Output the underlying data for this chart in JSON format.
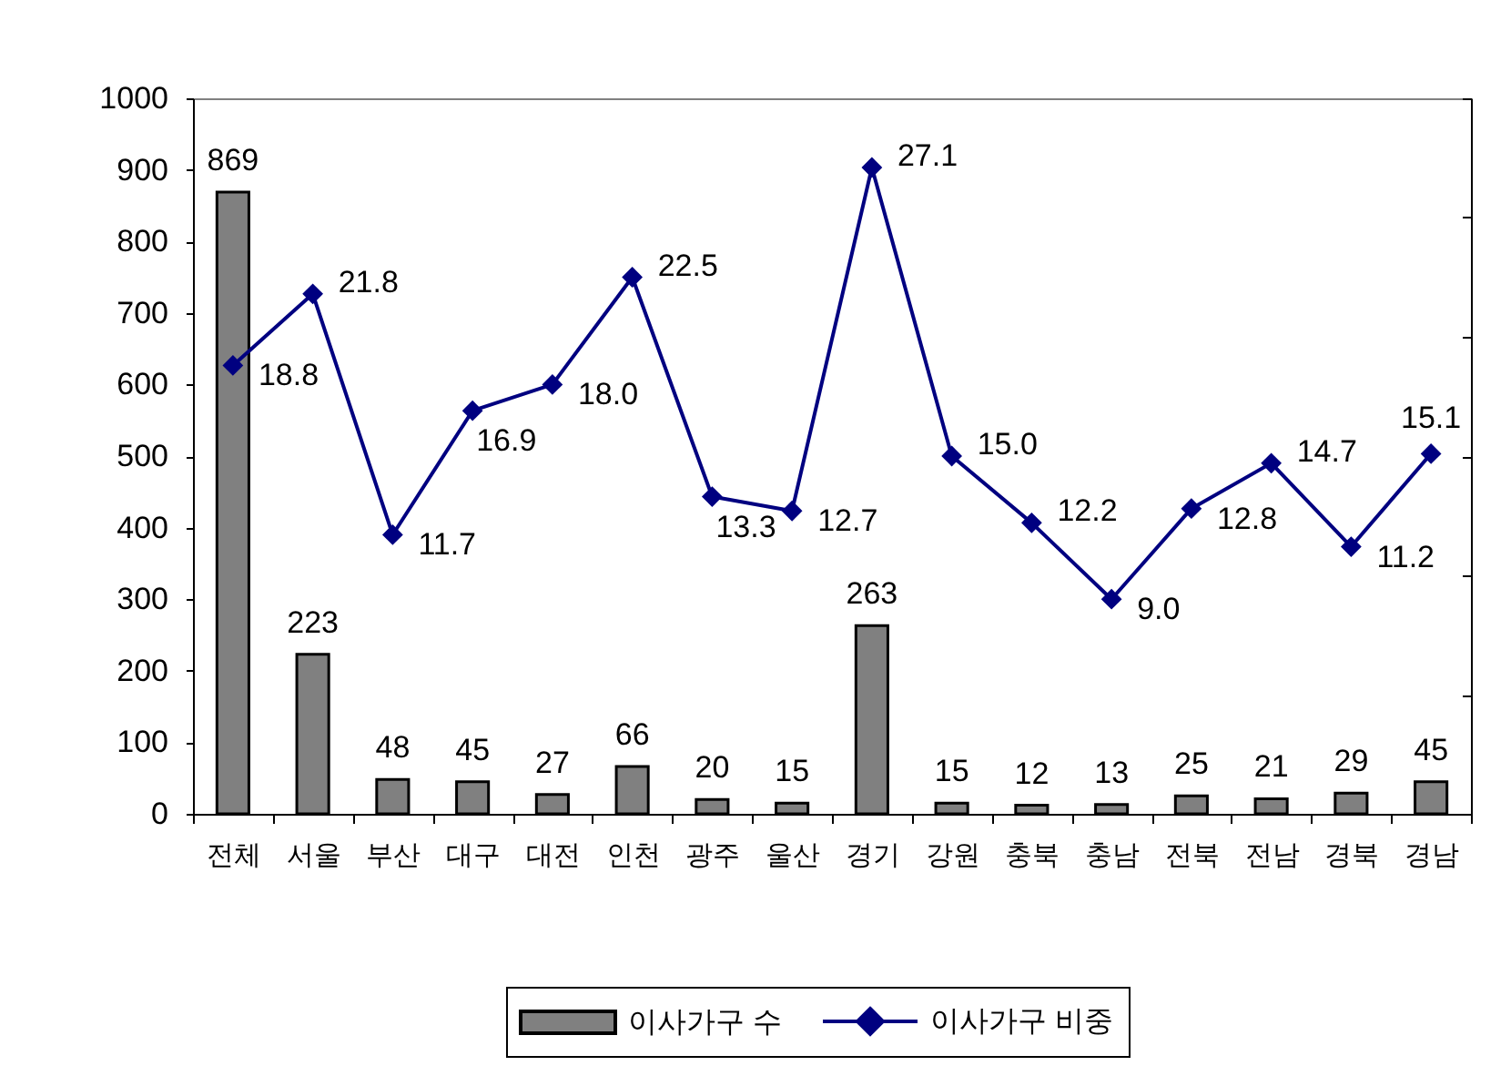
{
  "chart_data": {
    "type": "bar",
    "categories": [
      "전체",
      "서울",
      "부산",
      "대구",
      "대전",
      "인천",
      "광주",
      "울산",
      "경기",
      "강원",
      "충북",
      "충남",
      "전북",
      "전남",
      "경북",
      "경남"
    ],
    "series": [
      {
        "name": "이사가구 수",
        "type": "bar",
        "color": "#808080",
        "values": [
          869,
          223,
          48,
          45,
          27,
          66,
          20,
          15,
          263,
          15,
          12,
          13,
          25,
          21,
          29,
          45
        ],
        "value_labels": [
          "869",
          "223",
          "48",
          "45",
          "27",
          "66",
          "20",
          "15",
          "263",
          "15",
          "12",
          "13",
          "25",
          "21",
          "29",
          "45"
        ]
      },
      {
        "name": "이사가구 비중",
        "type": "line",
        "axis": "y2",
        "color": "#000080",
        "values": [
          18.8,
          21.8,
          11.7,
          16.9,
          18.0,
          22.5,
          13.3,
          12.7,
          27.1,
          15.0,
          12.2,
          9.0,
          12.8,
          14.7,
          11.2,
          15.1
        ],
        "value_labels": [
          "18.8",
          "21.8",
          "11.7",
          "16.9",
          "18.0",
          "22.5",
          "13.3",
          "12.7",
          "27.1",
          "15.0",
          "12.2",
          "9.0",
          "12.8",
          "14.7",
          "11.2",
          "15.1"
        ]
      }
    ],
    "ylim": [
      0,
      1000
    ],
    "yticks": [
      0,
      100,
      200,
      300,
      400,
      500,
      600,
      700,
      800,
      900,
      1000
    ],
    "y2lim": [
      0,
      30
    ],
    "y2ticks": [
      {
        "value": 0,
        "label": null
      },
      {
        "value": 5,
        "label": null
      },
      {
        "value": 10,
        "label": null
      },
      {
        "value": 15,
        "label": null
      },
      {
        "value": 20,
        "label": null
      },
      {
        "value": 25,
        "label": null
      },
      {
        "value": 30,
        "label": null
      }
    ],
    "marker": "diamond",
    "line_style": "solid",
    "legend": "bottom"
  }
}
